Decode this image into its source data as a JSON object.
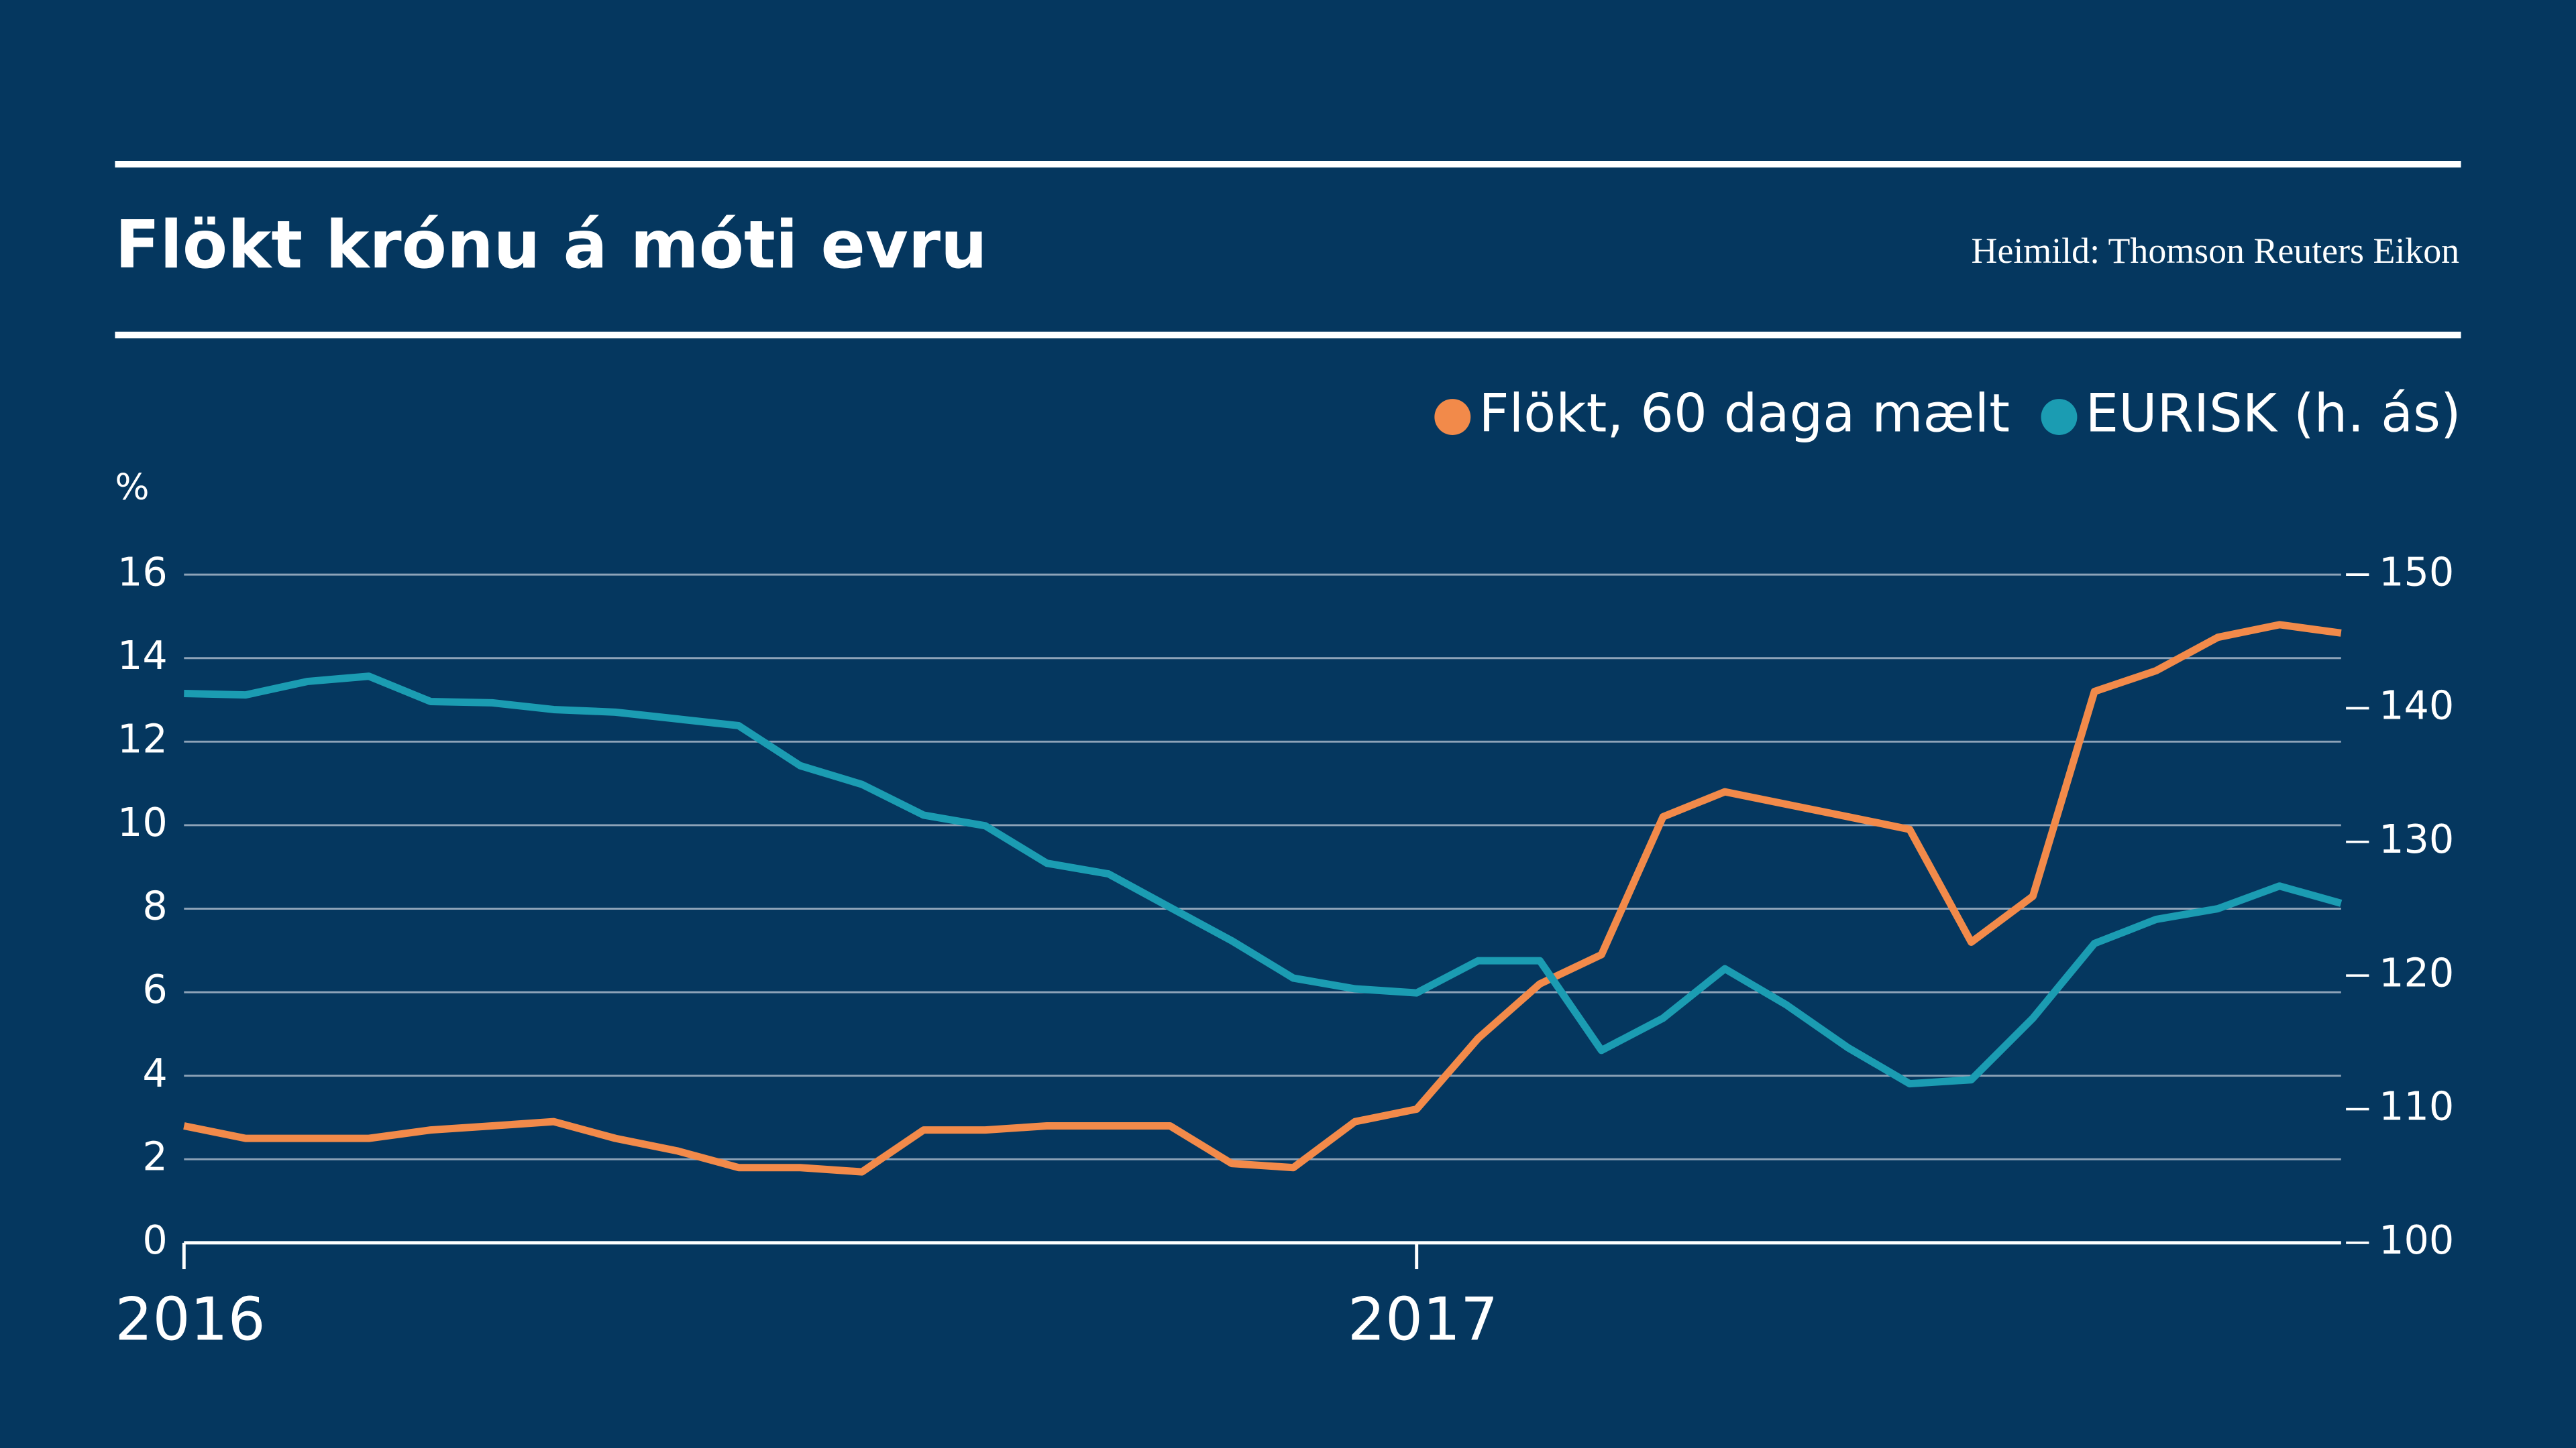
{
  "chart_data": {
    "type": "line",
    "title": "Flökt krónu á móti evru",
    "source": "Heimild: Thomson Reuters Eikon",
    "y_label": "%",
    "x": [
      2016.0,
      2016.05,
      2016.1,
      2016.15,
      2016.2,
      2016.25,
      2016.3,
      2016.35,
      2016.4,
      2016.45,
      2016.5,
      2016.55,
      2016.6,
      2016.65,
      2016.7,
      2016.75,
      2016.8,
      2016.85,
      2016.9,
      2016.95,
      2017.0,
      2017.05,
      2017.1,
      2017.15,
      2017.2,
      2017.25,
      2017.3,
      2017.35,
      2017.4,
      2017.45,
      2017.5,
      2017.55,
      2017.6,
      2017.65,
      2017.7,
      2017.75
    ],
    "series": [
      {
        "name": "Flökt, 60 daga mælt",
        "color": "#f28a4a",
        "values": [
          2.8,
          2.5,
          2.5,
          2.5,
          2.7,
          2.8,
          2.9,
          2.5,
          2.2,
          1.8,
          1.8,
          1.7,
          2.7,
          2.7,
          2.8,
          2.8,
          2.8,
          1.9,
          1.8,
          2.9,
          3.2,
          4.9,
          6.2,
          6.9,
          10.2,
          10.8,
          10.5,
          10.2,
          9.9,
          7.2,
          8.3,
          13.2,
          13.7,
          14.5,
          14.8,
          14.6
        ]
      },
      {
        "name": "EURISK (h. ás)",
        "color": "#1b9cb2",
        "axis": "y2",
        "values": [
          141.1,
          141,
          142,
          142.4,
          140.5,
          140.4,
          139.9,
          139.7,
          139.2,
          138.7,
          135.7,
          134.3,
          132,
          131.2,
          128.4,
          127.6,
          125.1,
          122.6,
          119.8,
          119,
          118.7,
          121.1,
          121.1,
          114.4,
          116.8,
          120.5,
          117.8,
          114.6,
          111.9,
          112.2,
          116.8,
          122.4,
          124.2,
          125,
          126.7,
          125.4
        ]
      }
    ],
    "xlim": [
      2016,
      2017.75
    ],
    "xticks": [
      2016,
      2017
    ],
    "ylim": [
      0,
      16
    ],
    "yticks": [
      0,
      2,
      4,
      6,
      8,
      10,
      12,
      14,
      16
    ],
    "y2lim": [
      100,
      150
    ],
    "y2ticks": [
      100,
      110,
      120,
      130,
      140,
      150
    ],
    "grid": true,
    "legend": "top-right"
  }
}
